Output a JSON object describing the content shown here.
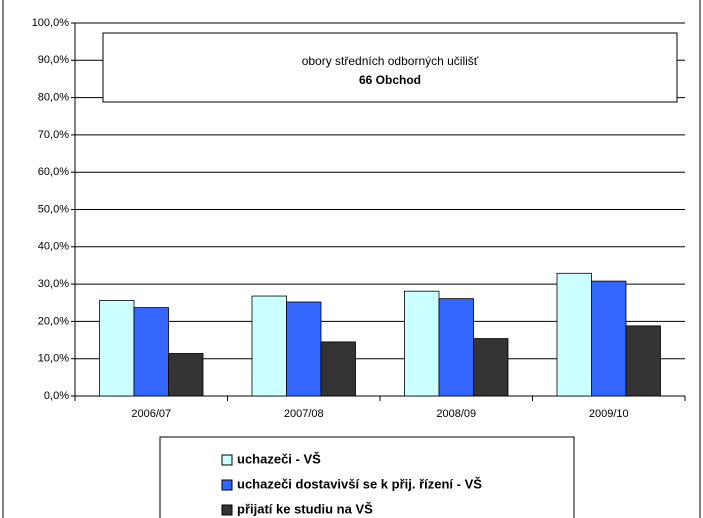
{
  "chart_data": {
    "type": "bar",
    "annotation": {
      "line1": "obory středních odborných učilišť",
      "line2": "66 Obchod"
    },
    "categories": [
      "2006/07",
      "2007/08",
      "2008/09",
      "2009/10"
    ],
    "series": [
      {
        "name": "uchazeči - VŠ",
        "color": "#ccffff",
        "values": [
          25.6,
          26.8,
          28.1,
          32.9
        ]
      },
      {
        "name": "uchazeči dostavivší se k přij. řízení - VŠ",
        "color": "#3366ff",
        "values": [
          23.7,
          25.2,
          26.1,
          30.8
        ]
      },
      {
        "name": "přijatí ke studiu na VŠ",
        "color": "#333333",
        "values": [
          11.4,
          14.5,
          15.4,
          18.8
        ]
      }
    ],
    "ylim": [
      0,
      100
    ],
    "yticks": [
      {
        "value": 0,
        "label": "0,0%"
      },
      {
        "value": 10,
        "label": "10,0%"
      },
      {
        "value": 20,
        "label": "20,0%"
      },
      {
        "value": 30,
        "label": "30,0%"
      },
      {
        "value": 40,
        "label": "40,0%"
      },
      {
        "value": 50,
        "label": "50,0%"
      },
      {
        "value": 60,
        "label": "60,0%"
      },
      {
        "value": 70,
        "label": "70,0%"
      },
      {
        "value": 80,
        "label": "80,0%"
      },
      {
        "value": 90,
        "label": "90,0%"
      },
      {
        "value": 100,
        "label": "100,0%"
      }
    ],
    "grid": true,
    "legend": "bottom"
  }
}
